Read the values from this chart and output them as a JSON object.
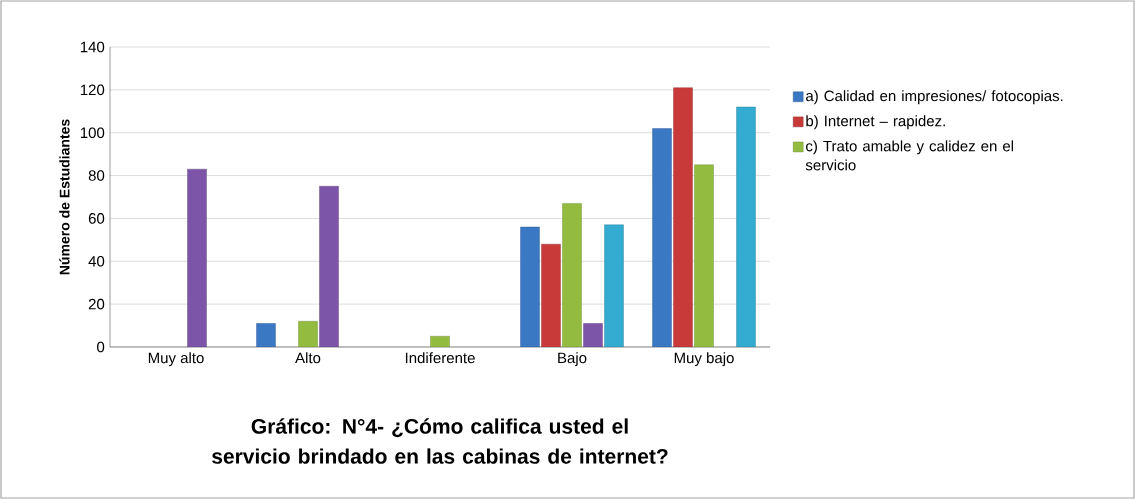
{
  "chart_data": {
    "type": "bar",
    "title": "Gráfico: N°4-  ¿Cómo califica usted el servicio brindado en las cabinas de internet?",
    "ylabel": "Número de Estudiantes",
    "categories": [
      "Muy alto",
      "Alto",
      "Indiferente",
      "Bajo",
      "Muy bajo"
    ],
    "series": [
      {
        "name": "a)  Calidad en impresiones/ fotocopias.",
        "color": "#3a78c3",
        "values": [
          null,
          11,
          null,
          56,
          102
        ]
      },
      {
        "name": "b)  Internet – rapidez.",
        "color": "#c83a3a",
        "values": [
          null,
          null,
          null,
          48,
          121
        ]
      },
      {
        "name": "c)  Trato amable y calidez en el servicio",
        "color": "#93bb3f",
        "values": [
          null,
          12,
          5,
          67,
          85
        ]
      },
      {
        "color": "#7c55a8",
        "values": [
          83,
          75,
          null,
          11,
          null
        ]
      },
      {
        "color": "#34abd0",
        "values": [
          null,
          null,
          null,
          57,
          112
        ]
      }
    ],
    "ylim": [
      0,
      140
    ],
    "yticks": [
      0,
      20,
      40,
      60,
      80,
      100,
      120,
      140
    ],
    "grid": "y",
    "legend": "right"
  }
}
